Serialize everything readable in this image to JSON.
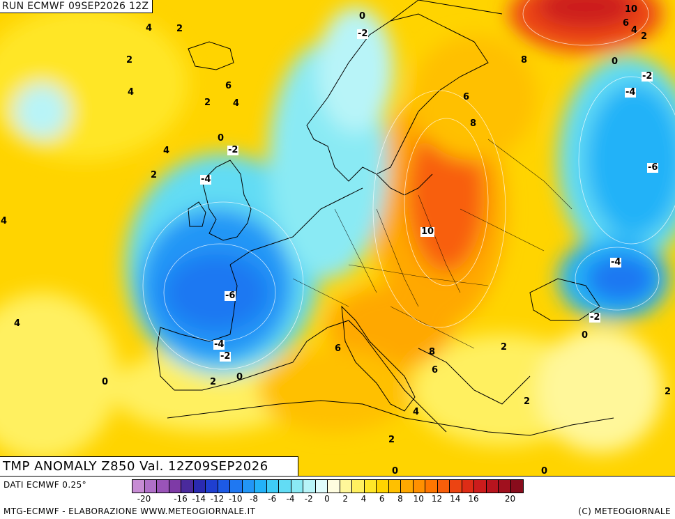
{
  "header": {
    "run_label": "RUN ECMWF 09SEP2026 12Z",
    "product_label": "TMP ANOMALY Z850 Val. 12Z09SEP2026"
  },
  "legend": {
    "data_source": "DATI ECMWF 0.25°",
    "credits_left": "MTG-ECMWF - ELABORAZIONE WWW.METEOGIORNALE.IT",
    "credits_right": "(C) METEOGIORNALE",
    "ticks": [
      "-20",
      "-18",
      "-16",
      "-14",
      "-12",
      "-10",
      "-8",
      "-6",
      "-4",
      "-2",
      "0",
      "2",
      "4",
      "6",
      "8",
      "10",
      "12",
      "14",
      "16",
      "18",
      "20"
    ],
    "tick_labels_shown": [
      "-20",
      "-16",
      "-14",
      "-12",
      "-10",
      "-8",
      "-6",
      "-4",
      "-2",
      "0",
      "2",
      "4",
      "6",
      "8",
      "10",
      "12",
      "14",
      "16",
      "20"
    ],
    "colors": [
      "#c78cd4",
      "#b070c8",
      "#9a54b8",
      "#7e3aa6",
      "#4a2a9c",
      "#2a2ab0",
      "#1f3fd0",
      "#1d5ae6",
      "#1f78f2",
      "#2296f6",
      "#23b2f8",
      "#3fccf6",
      "#62dcf4",
      "#8aeaf4",
      "#b8f4f8",
      "#e0fcfc",
      "#fffde0",
      "#fff79a",
      "#fff060",
      "#ffe628",
      "#ffd400",
      "#ffc000",
      "#ffa800",
      "#ff9000",
      "#ff7600",
      "#f85e0a",
      "#ec4412",
      "#de2c16",
      "#cc1c1c",
      "#b8141e",
      "#a0101e",
      "#880c1c"
    ]
  },
  "map": {
    "colors": {
      "warm_bg": "#ffd400",
      "orange": "#ffa800",
      "deep_orange": "#f85e0a",
      "red": "#de2c16",
      "light_yellow": "#fff060",
      "cyan": "#62dcf4",
      "light_blue": "#2296f6",
      "blue": "#1f78f2",
      "coast": "#000000"
    },
    "isotherm_labels": [
      {
        "text": "0",
        "boxed": false
      },
      {
        "text": "-2",
        "boxed": true
      },
      {
        "text": "10",
        "boxed": false
      },
      {
        "text": "6",
        "boxed": false
      },
      {
        "text": "4",
        "boxed": false
      },
      {
        "text": "2",
        "boxed": false
      },
      {
        "text": "4",
        "boxed": false
      },
      {
        "text": "2",
        "boxed": false
      },
      {
        "text": "8",
        "boxed": false
      },
      {
        "text": "0",
        "boxed": false
      },
      {
        "text": "-2",
        "boxed": true
      },
      {
        "text": "2",
        "boxed": false
      },
      {
        "text": "6",
        "boxed": false
      },
      {
        "text": "4",
        "boxed": false
      },
      {
        "text": "-4",
        "boxed": true
      },
      {
        "text": "2",
        "boxed": false
      },
      {
        "text": "4",
        "boxed": false
      },
      {
        "text": "6",
        "boxed": false
      },
      {
        "text": "8",
        "boxed": false
      },
      {
        "text": "0",
        "boxed": false
      },
      {
        "text": "-2",
        "boxed": true
      },
      {
        "text": "4",
        "boxed": false
      },
      {
        "text": "-6",
        "boxed": true
      },
      {
        "text": "2",
        "boxed": false
      },
      {
        "text": "-4",
        "boxed": true
      },
      {
        "text": "4",
        "boxed": false
      },
      {
        "text": "10",
        "boxed": true
      },
      {
        "text": "-4",
        "boxed": true
      },
      {
        "text": "-6",
        "boxed": true
      },
      {
        "text": "-2",
        "boxed": true
      },
      {
        "text": "4",
        "boxed": false
      },
      {
        "text": "0",
        "boxed": false
      },
      {
        "text": "-4",
        "boxed": true
      },
      {
        "text": "6",
        "boxed": false
      },
      {
        "text": "-2",
        "boxed": true
      },
      {
        "text": "8",
        "boxed": false
      },
      {
        "text": "2",
        "boxed": false
      },
      {
        "text": "6",
        "boxed": false
      },
      {
        "text": "0",
        "boxed": false
      },
      {
        "text": "2",
        "boxed": false
      },
      {
        "text": "0",
        "boxed": false
      },
      {
        "text": "2",
        "boxed": false
      },
      {
        "text": "2",
        "boxed": false
      },
      {
        "text": "4",
        "boxed": false
      },
      {
        "text": "2",
        "boxed": false
      },
      {
        "text": "0",
        "boxed": false
      },
      {
        "text": "0",
        "boxed": false
      }
    ]
  }
}
